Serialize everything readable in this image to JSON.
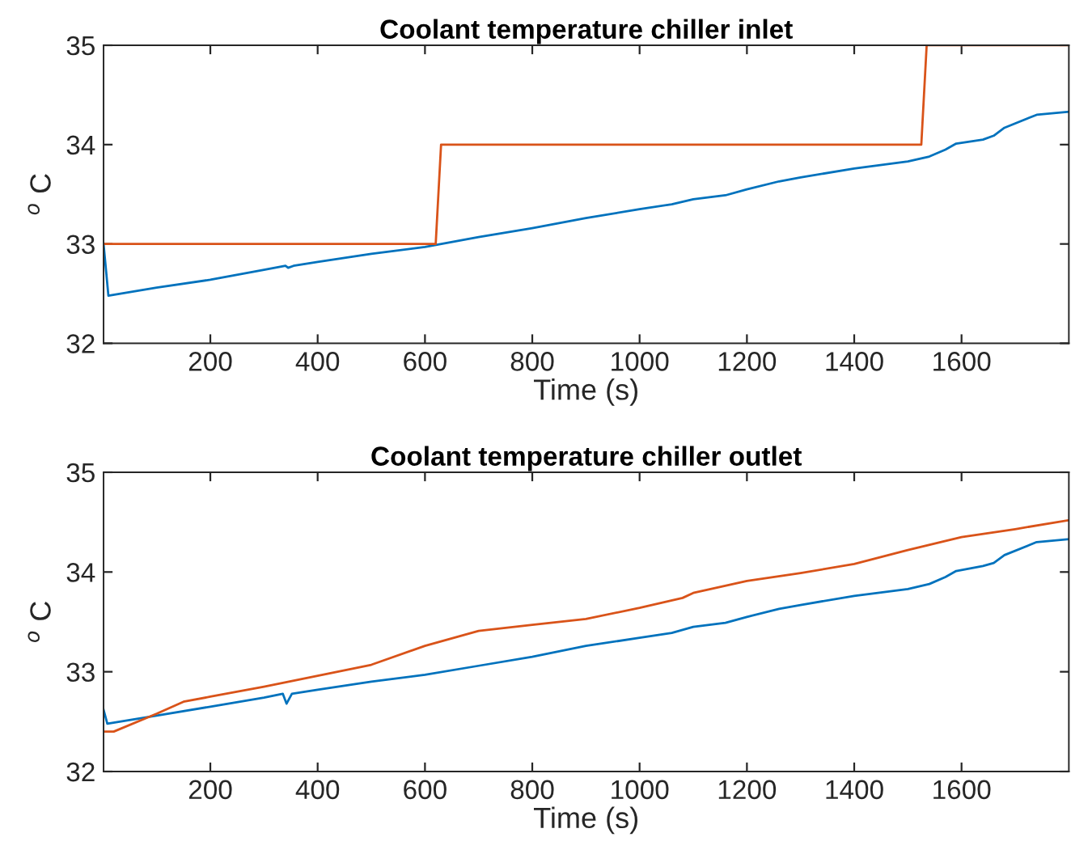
{
  "chart_data": [
    {
      "type": "line",
      "title": "Coolant temperature chiller inlet",
      "xlabel": "Time (s)",
      "ylabel": "$^{o}$ C",
      "xlim": [
        1,
        1800
      ],
      "ylim": [
        32,
        35
      ],
      "xticks": [
        200,
        400,
        600,
        800,
        1000,
        1200,
        1400,
        1600
      ],
      "yticks": [
        32,
        33,
        34,
        35
      ],
      "grid": false,
      "legend": false,
      "series": [
        {
          "color": "#0072bd",
          "x": [
            1,
            10,
            100,
            200,
            300,
            340,
            345,
            355,
            400,
            500,
            600,
            700,
            800,
            900,
            1000,
            1060,
            1100,
            1160,
            1200,
            1260,
            1300,
            1400,
            1500,
            1540,
            1570,
            1590,
            1640,
            1660,
            1680,
            1740,
            1800
          ],
          "values": [
            33.0,
            32.48,
            32.56,
            32.64,
            32.74,
            32.78,
            32.76,
            32.78,
            32.82,
            32.9,
            32.97,
            33.07,
            33.16,
            33.26,
            33.35,
            33.4,
            33.45,
            33.49,
            33.55,
            33.63,
            33.67,
            33.76,
            33.83,
            33.88,
            33.95,
            34.01,
            34.05,
            34.09,
            34.17,
            34.3,
            34.33
          ]
        },
        {
          "color": "#d95319",
          "x": [
            1,
            620,
            630,
            1525,
            1535,
            1800
          ],
          "values": [
            33,
            33,
            34,
            34,
            35,
            35
          ]
        }
      ]
    },
    {
      "type": "line",
      "title": "Coolant temperature chiller outlet",
      "xlabel": "Time (s)",
      "ylabel": "$^{o}$ C",
      "xlim": [
        1,
        1800
      ],
      "ylim": [
        32,
        35
      ],
      "xticks": [
        200,
        400,
        600,
        800,
        1000,
        1200,
        1400,
        1600
      ],
      "yticks": [
        32,
        33,
        34,
        35
      ],
      "grid": false,
      "legend": false,
      "series": [
        {
          "color": "#0072bd",
          "x": [
            1,
            8,
            100,
            200,
            300,
            335,
            342,
            352,
            400,
            500,
            600,
            700,
            800,
            900,
            1000,
            1060,
            1100,
            1160,
            1200,
            1260,
            1300,
            1400,
            1500,
            1540,
            1570,
            1590,
            1640,
            1660,
            1680,
            1740,
            1800
          ],
          "values": [
            32.62,
            32.48,
            32.56,
            32.65,
            32.74,
            32.78,
            32.68,
            32.78,
            32.82,
            32.9,
            32.97,
            33.06,
            33.15,
            33.26,
            33.34,
            33.39,
            33.45,
            33.49,
            33.55,
            33.63,
            33.67,
            33.76,
            33.83,
            33.88,
            33.95,
            34.01,
            34.06,
            34.09,
            34.17,
            34.3,
            34.33
          ]
        },
        {
          "color": "#d95319",
          "x": [
            1,
            20,
            100,
            150,
            200,
            300,
            400,
            500,
            600,
            700,
            800,
            900,
            1000,
            1080,
            1100,
            1200,
            1300,
            1400,
            1500,
            1600,
            1700,
            1800
          ],
          "values": [
            32.4,
            32.4,
            32.58,
            32.7,
            32.75,
            32.85,
            32.96,
            33.07,
            33.26,
            33.41,
            33.47,
            33.53,
            33.64,
            33.74,
            33.79,
            33.91,
            33.99,
            34.08,
            34.22,
            34.35,
            34.43,
            34.52
          ]
        }
      ]
    }
  ]
}
